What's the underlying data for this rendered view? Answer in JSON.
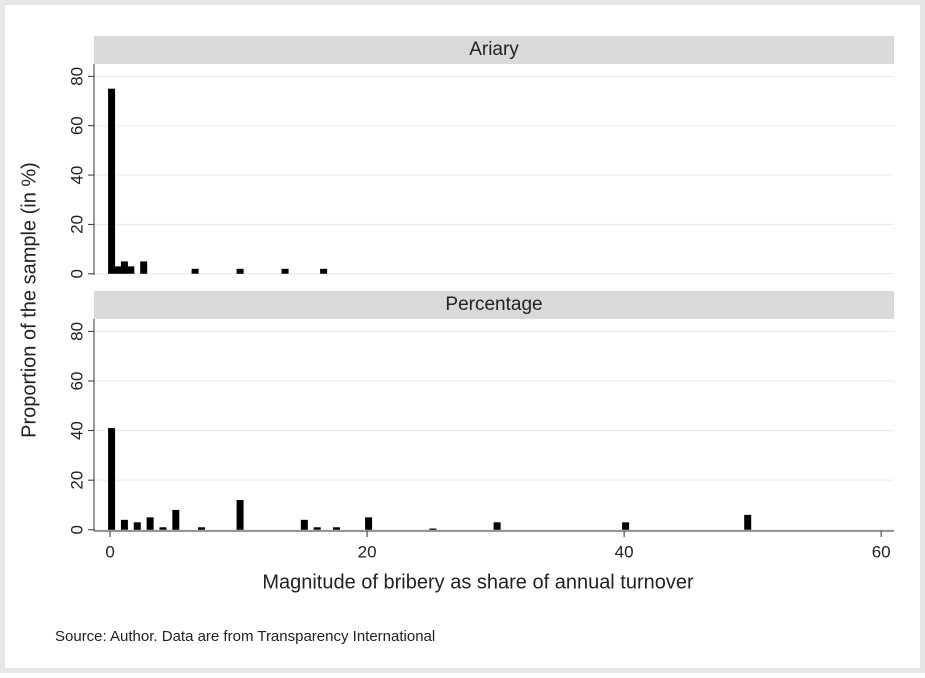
{
  "chart_data": [
    {
      "type": "bar",
      "title": "Ariary",
      "x": [
        0,
        0.5,
        1,
        1.5,
        2.5,
        6.5,
        10,
        13.5,
        16.5
      ],
      "values": [
        75,
        3,
        5,
        3,
        5,
        2,
        2,
        2,
        2
      ],
      "color": "#000000",
      "xlim": [
        -1.25,
        61
      ],
      "ylim": [
        -0.5,
        85
      ],
      "yticks": [
        0,
        20,
        40,
        60,
        80
      ],
      "grid": true
    },
    {
      "type": "bar",
      "title": "Percentage",
      "x": [
        0,
        1,
        2,
        3,
        4,
        5,
        7,
        10,
        15,
        16,
        17.5,
        20,
        25,
        30,
        40,
        49.5
      ],
      "values": [
        41,
        4,
        3,
        5,
        1,
        8,
        1,
        12,
        4,
        1,
        1,
        5,
        0.5,
        3,
        3,
        6
      ],
      "color": "#000000",
      "xlim": [
        -1.25,
        61
      ],
      "ylim": [
        -0.5,
        85
      ],
      "yticks": [
        0,
        20,
        40,
        60,
        80
      ],
      "xticks": [
        0,
        20,
        40,
        60
      ],
      "grid": true
    }
  ],
  "x_label": "Magnitude of bribery as share of annual turnover",
  "y_label": "Proportion of the sample (in %)",
  "source": "Source: Author. Data are from Transparency International"
}
